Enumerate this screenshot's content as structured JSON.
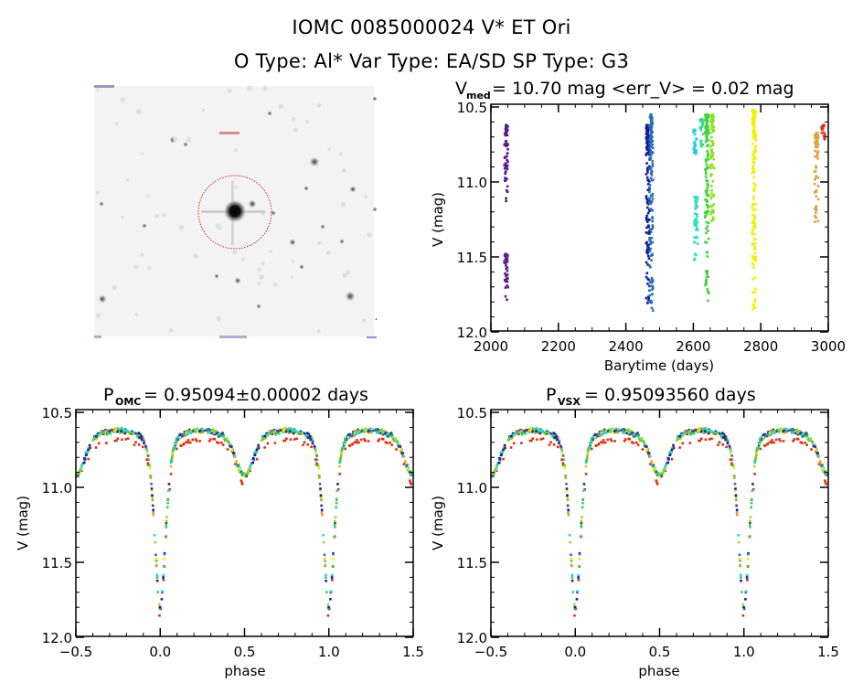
{
  "header": {
    "line1": "IOMC 0085000024     V* ET Ori",
    "line2": "O Type: Al*   Var Type: EA/SD   SP Type: G3"
  },
  "sky_image": {
    "description": "finding chart (inverted greyscale) with red circle around target star",
    "circle_color": "#cc2020"
  },
  "chart_data": [
    {
      "id": "lightcurve",
      "type": "scatter",
      "title_main": "V",
      "title_sub": "med",
      "title_rest": " = 10.70 mag <err_V> = 0.02 mag",
      "xlabel": "Barytime (days)",
      "ylabel": "V (mag)",
      "xlim": [
        2000,
        3000
      ],
      "ylim": [
        10.5,
        12.0
      ],
      "y_inverted": true,
      "xticks": [
        2000,
        2200,
        2400,
        2600,
        2800,
        3000
      ],
      "xtick_labels": [
        "2000",
        "2200",
        "2400",
        "2600",
        "2800",
        "3000"
      ],
      "yticks": [
        10.5,
        11.0,
        11.5,
        12.0
      ],
      "ytick_labels": [
        "10.5",
        "11.0",
        "11.5",
        "12.0"
      ],
      "grid": false,
      "segments": [
        {
          "x": 2045,
          "ymin": 10.62,
          "ymax": 11.13,
          "color": "#5a1a8a"
        },
        {
          "x": 2045,
          "ymin": 11.48,
          "ymax": 11.8,
          "color": "#5a1a8a"
        },
        {
          "x": 2465,
          "ymin": 10.62,
          "ymax": 11.82,
          "color": "#1020a0"
        },
        {
          "x": 2475,
          "ymin": 10.55,
          "ymax": 11.88,
          "color": "#2a70b0"
        },
        {
          "x": 2605,
          "ymin": 10.65,
          "ymax": 10.82,
          "color": "#20d0e0"
        },
        {
          "x": 2608,
          "ymin": 11.1,
          "ymax": 11.6,
          "color": "#30e0c0"
        },
        {
          "x": 2625,
          "ymin": 10.58,
          "ymax": 10.77,
          "color": "#30d890"
        },
        {
          "x": 2640,
          "ymin": 10.55,
          "ymax": 11.8,
          "color": "#40d040"
        },
        {
          "x": 2656,
          "ymin": 10.55,
          "ymax": 11.3,
          "color": "#90e020"
        },
        {
          "x": 2780,
          "ymin": 10.52,
          "ymax": 11.85,
          "color": "#f0f000"
        },
        {
          "x": 2965,
          "ymin": 10.67,
          "ymax": 11.28,
          "color": "#e0a040"
        },
        {
          "x": 2985,
          "ymin": 10.62,
          "ymax": 10.72,
          "color": "#e03010"
        }
      ]
    },
    {
      "id": "phase-omc",
      "type": "scatter",
      "title_main": "P",
      "title_sub": "OMC",
      "title_rest": " = 0.95094±0.00002 days",
      "xlabel": "phase",
      "ylabel": "V (mag)",
      "xlim": [
        -0.5,
        1.5
      ],
      "ylim": [
        10.5,
        12.0
      ],
      "y_inverted": true,
      "xticks": [
        -0.5,
        0.0,
        0.5,
        1.0,
        1.5
      ],
      "xtick_labels": [
        "−0.5",
        "0.0",
        "0.5",
        "1.0",
        "1.5"
      ],
      "yticks": [
        10.5,
        11.0,
        11.5,
        12.0
      ],
      "ytick_labels": [
        "10.5",
        "11.0",
        "11.5",
        "12.0"
      ],
      "grid": false,
      "period_days": 0.95094,
      "curve": {
        "max_mag": 10.62,
        "primary_min_mag": 11.82,
        "secondary_min_mag": 10.92,
        "primary_phase": 0.0,
        "secondary_phase": 0.5
      },
      "series_colors": [
        "#5a1a8a",
        "#1020a0",
        "#2a70b0",
        "#20d0e0",
        "#30d890",
        "#40d040",
        "#90e020",
        "#f0f000",
        "#e0a040",
        "#e03010"
      ]
    },
    {
      "id": "phase-vsx",
      "type": "scatter",
      "title_main": "P",
      "title_sub": "VSX",
      "title_rest": " = 0.95093560 days",
      "xlabel": "phase",
      "ylabel": "V (mag)",
      "xlim": [
        -0.5,
        1.5
      ],
      "ylim": [
        10.5,
        12.0
      ],
      "y_inverted": true,
      "xticks": [
        -0.5,
        0.0,
        0.5,
        1.0,
        1.5
      ],
      "xtick_labels": [
        "−0.5",
        "0.0",
        "0.5",
        "1.0",
        "1.5"
      ],
      "yticks": [
        10.5,
        11.0,
        11.5,
        12.0
      ],
      "ytick_labels": [
        "10.5",
        "11.0",
        "11.5",
        "12.0"
      ],
      "grid": false,
      "period_days": 0.9509356,
      "curve": {
        "max_mag": 10.62,
        "primary_min_mag": 11.82,
        "secondary_min_mag": 10.92,
        "primary_phase": 0.0,
        "secondary_phase": 0.5
      },
      "series_colors": [
        "#5a1a8a",
        "#1020a0",
        "#2a70b0",
        "#20d0e0",
        "#30d890",
        "#40d040",
        "#90e020",
        "#f0f000",
        "#e0a040",
        "#e03010"
      ]
    }
  ]
}
